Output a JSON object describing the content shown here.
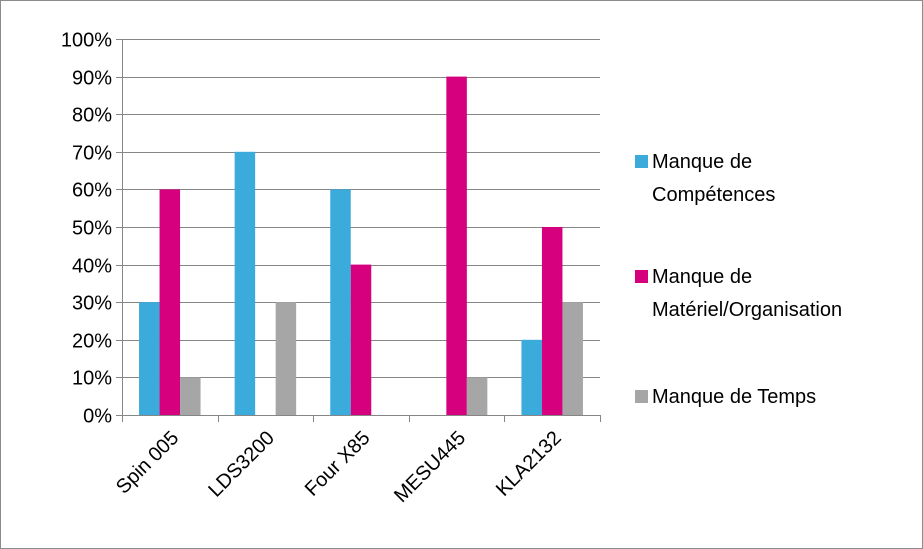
{
  "chart_data": {
    "type": "bar",
    "title": "",
    "xlabel": "",
    "ylabel": "",
    "categories": [
      "Spin 005",
      "LDS3200",
      "Four X85",
      "MESU445",
      "KLA2132"
    ],
    "series": [
      {
        "name": "Manque de Compétences",
        "label_lines": [
          "Manque de",
          "Compétences"
        ],
        "color": "#3aabdb",
        "values": [
          30,
          70,
          60,
          0,
          20
        ]
      },
      {
        "name": "Manque de Matériel/Organisation",
        "label_lines": [
          "Manque de",
          "Matériel/Organisation"
        ],
        "color": "#d6007f",
        "values": [
          60,
          0,
          40,
          90,
          50
        ]
      },
      {
        "name": "Manque de Temps",
        "label_lines": [
          "Manque de Temps"
        ],
        "color": "#a6a6a6",
        "values": [
          10,
          30,
          0,
          10,
          30
        ]
      }
    ],
    "yticks": [
      "0%",
      "10%",
      "20%",
      "30%",
      "40%",
      "50%",
      "60%",
      "70%",
      "80%",
      "90%",
      "100%"
    ],
    "ylim": [
      0,
      100
    ],
    "grid": true,
    "legend_position": "right"
  }
}
